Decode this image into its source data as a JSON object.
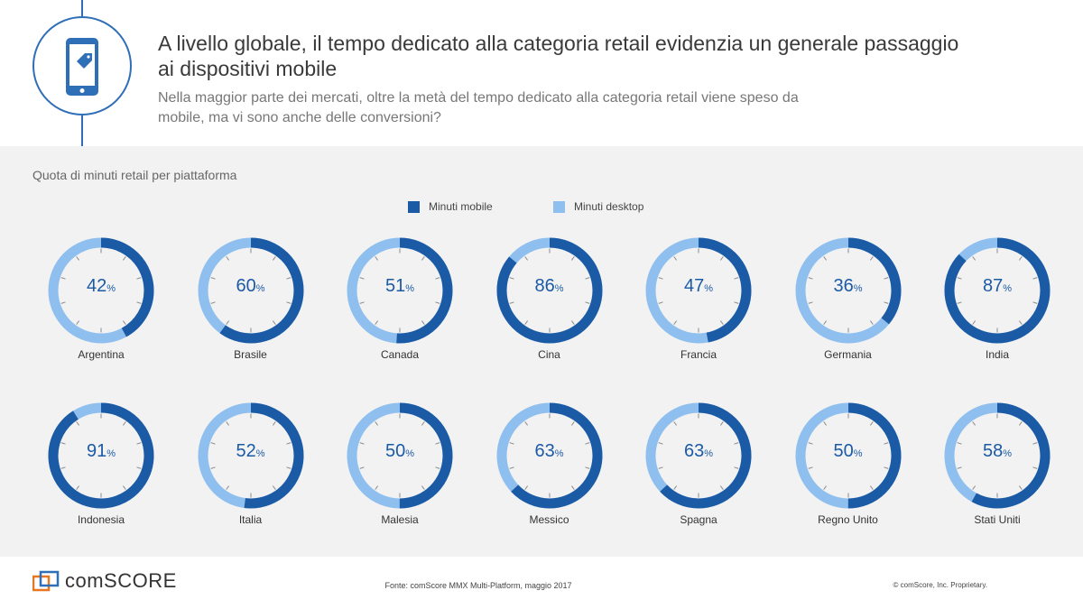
{
  "header": {
    "title": "A livello globale, il tempo dedicato alla categoria retail evidenzia un generale passaggio ai dispositivi mobile",
    "subtitle": "Nella maggior parte dei mercati, oltre la metà del tempo dedicato alla categoria retail viene speso da mobile, ma vi sono anche delle conversioni?",
    "icon": "mobile-shopping-tag-icon"
  },
  "colors": {
    "mobile": "#1b5aa5",
    "desktop": "#8ebfee",
    "accent": "#2f6fb7",
    "panel": "#f2f2f2"
  },
  "chart_data": {
    "type": "donut",
    "title": "Quota di minuti retail per piattaforma",
    "legend": [
      "Minuti mobile",
      "Minuti desktop"
    ],
    "unit": "%",
    "categories": [
      "Argentina",
      "Brasile",
      "Canada",
      "Cina",
      "Francia",
      "Germania",
      "India",
      "Indonesia",
      "Italia",
      "Malesia",
      "Messico",
      "Spagna",
      "Regno Unito",
      "Stati Uniti"
    ],
    "series": [
      {
        "name": "Minuti mobile",
        "values": [
          42,
          60,
          51,
          86,
          47,
          36,
          87,
          91,
          52,
          50,
          63,
          63,
          50,
          58
        ]
      }
    ]
  },
  "footer": {
    "logo": "comSCORE",
    "source": "Fonte: comScore MMX Multi-Platform, maggio 2017",
    "copyright": "© comScore, Inc. Proprietary."
  }
}
